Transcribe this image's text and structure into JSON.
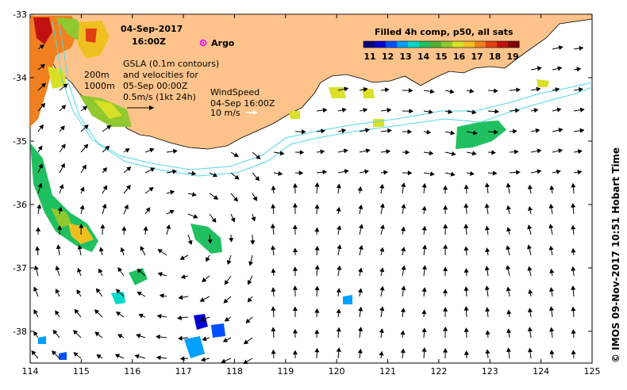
{
  "header": {
    "date": "04-Sep-2017",
    "time": "16:00Z",
    "argo_label": "Argo"
  },
  "colorbar": {
    "title": "Filled 4h comp, p50, all sats",
    "tick_labels": [
      "11",
      "12",
      "13",
      "14",
      "15",
      "16",
      "17",
      "18",
      "19"
    ],
    "colors": [
      "#00007f",
      "#0000d0",
      "#0050ff",
      "#00a0ff",
      "#00d8c8",
      "#20c060",
      "#50b030",
      "#90c830",
      "#d8e028",
      "#f0c020",
      "#f08020",
      "#e04010",
      "#c01010",
      "#800000"
    ]
  },
  "annotations": {
    "isobath_200": "200m",
    "isobath_1000": "1000m",
    "gsla_line1": "GSLA (0.1m contours)",
    "gsla_line2": "and velocities for",
    "gsla_line3": "05-Sep 00:00Z",
    "gsla_line4": "0.5m/s (1kt 24h)",
    "wind_line1": "WindSpeed",
    "wind_line2": "04-Sep 16:00Z",
    "wind_line3": "10 m/s"
  },
  "axes": {
    "x_ticks": [
      "114",
      "115",
      "116",
      "117",
      "118",
      "119",
      "120",
      "121",
      "122",
      "123",
      "124",
      "125"
    ],
    "y_ticks": [
      "-33",
      "-34",
      "-35",
      "-36",
      "-37",
      "-38"
    ]
  },
  "credit": "© IMOS 09-Nov-2017 10:51 Hobart Time",
  "colors": {
    "land": "#fdc38a",
    "isobath": "#4fd8e8",
    "argo": "#ff00ff",
    "ocean": "#ffffff"
  }
}
